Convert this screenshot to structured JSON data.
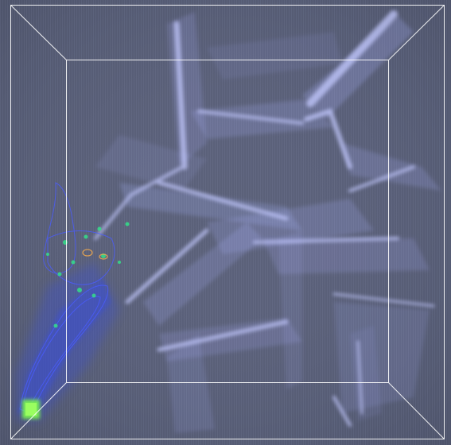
{
  "viewport": {
    "background": "#5a6078",
    "wireframe_color": "#ffffff",
    "sheet_color": "#aab4ff",
    "density_colors": {
      "low": "#3b4fd8",
      "mid": "#2fa8c8",
      "high": "#34e08a",
      "peak": "#7dff4a"
    }
  }
}
